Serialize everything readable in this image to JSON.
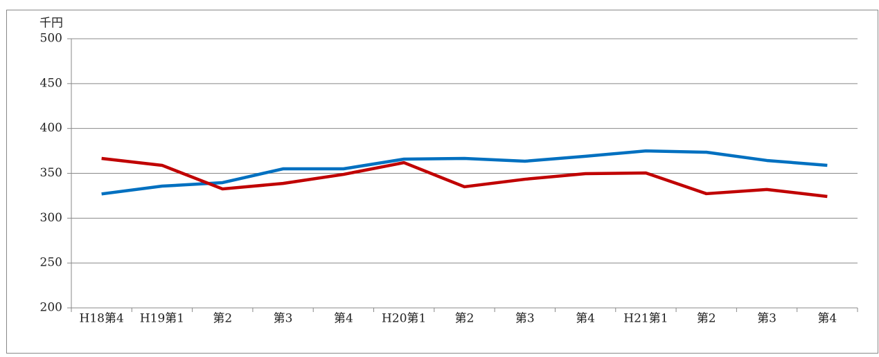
{
  "chart_data": {
    "type": "line",
    "y_unit": "千円",
    "categories": [
      "H18第4",
      "H19第1",
      "第2",
      "第3",
      "第4",
      "H20第1",
      "第2",
      "第3",
      "第4",
      "H21第1",
      "第2",
      "第3",
      "第4"
    ],
    "series": [
      {
        "color": "#0070c0",
        "values": [
          327,
          335.7,
          339.6,
          355,
          355,
          365.8,
          366.6,
          363.5,
          369,
          375,
          373.5,
          364.3,
          358.9
        ]
      },
      {
        "color": "#c00000",
        "values": [
          366.6,
          358.9,
          332.6,
          338.7,
          348.8,
          361.9,
          335,
          343.4,
          349.6,
          350.4,
          327.3,
          332,
          324.2
        ]
      }
    ],
    "ylim": [
      200,
      500
    ],
    "yticks": [
      200,
      250,
      300,
      350,
      400,
      450,
      500
    ],
    "grid": true
  }
}
